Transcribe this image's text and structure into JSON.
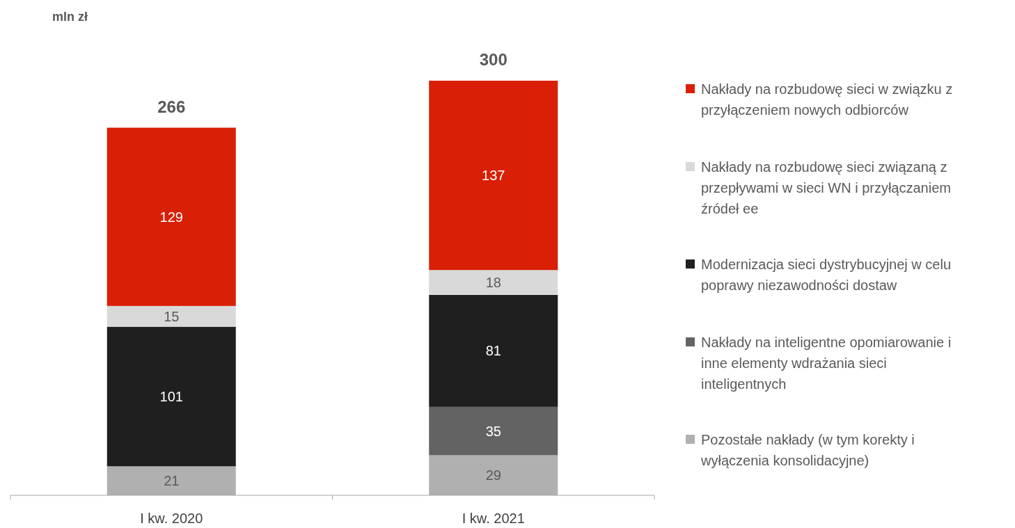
{
  "chart_data": {
    "type": "bar",
    "stacked": true,
    "ylabel": "mln zł",
    "categories": [
      "I kw. 2020",
      "I kw. 2021"
    ],
    "series": [
      {
        "name": "Pozostałe nakłady (w tym korekty i wyłączenia konsolidacyjne)",
        "color": "#b0b0b0",
        "values": [
          21,
          29
        ]
      },
      {
        "name": "Nakłady na inteligentne opomiarowanie i inne elementy wdrażania sieci inteligentnych",
        "color": "#636363",
        "values": [
          null,
          35
        ]
      },
      {
        "name": "Modernizacja sieci dystrybucyjnej w celu poprawy niezawodności dostaw",
        "color": "#1f1f1f",
        "values": [
          101,
          81
        ]
      },
      {
        "name": "Nakłady na rozbudowę sieci związaną z przepływami w sieci WN i przyłączaniem źródeł ee",
        "color": "#d9d9d9",
        "values": [
          15,
          18
        ]
      },
      {
        "name": "Nakłady na rozbudowę sieci w związku z przyłączeniem nowych odbiorców",
        "color": "#d91f05",
        "values": [
          129,
          137
        ]
      }
    ],
    "totals": [
      "266",
      "300"
    ],
    "data_labels": true,
    "legend": "right"
  }
}
